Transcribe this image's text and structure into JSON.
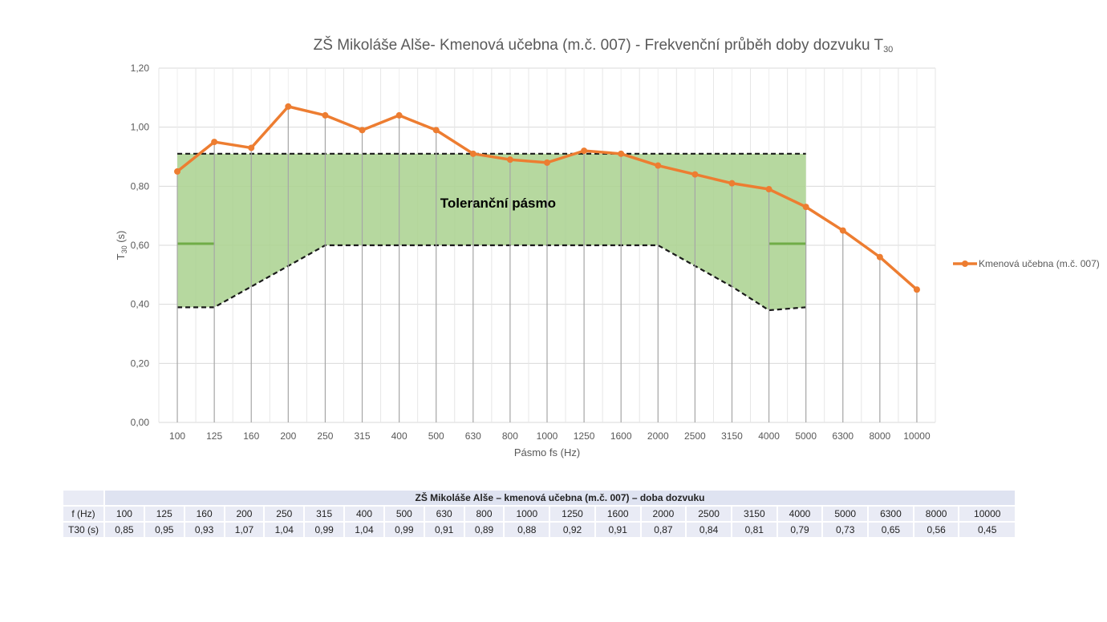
{
  "chart_data": {
    "type": "line",
    "title": "ZŠ Mikoláše Alše- Kmenová učebna (m.č. 007) - Frekvenční průběh doby dozvuku T",
    "title_sub": "30",
    "xlabel": "Pásmo fs (Hz)",
    "ylabel": "T",
    "ylabel_sub": "30",
    "ylabel_suffix": " (s)",
    "categories": [
      "100",
      "125",
      "160",
      "200",
      "250",
      "315",
      "400",
      "500",
      "630",
      "800",
      "1000",
      "1250",
      "1600",
      "2000",
      "2500",
      "3150",
      "4000",
      "5000",
      "6300",
      "8000",
      "10000"
    ],
    "ylim": [
      0,
      1.2
    ],
    "yticks": [
      "0,00",
      "0,20",
      "0,40",
      "0,60",
      "0,80",
      "1,00",
      "1,20"
    ],
    "ytick_values": [
      0,
      0.2,
      0.4,
      0.6,
      0.8,
      1.0,
      1.2
    ],
    "grid": true,
    "legend_position": "right",
    "series": [
      {
        "name": "Kmenová učebna (m.č. 007)",
        "color": "#ed7d31",
        "values": [
          0.85,
          0.95,
          0.93,
          1.07,
          1.04,
          0.99,
          1.04,
          0.99,
          0.91,
          0.89,
          0.88,
          0.92,
          0.91,
          0.87,
          0.84,
          0.81,
          0.79,
          0.73,
          0.65,
          0.56,
          0.45
        ]
      }
    ],
    "tolerance_band": {
      "label": "Toleranční pásmo",
      "color": "#a9d18e",
      "upper": [
        0.91,
        0.91,
        0.91,
        0.91,
        0.91,
        0.91,
        0.91,
        0.91,
        0.91,
        0.91,
        0.91,
        0.91,
        0.91,
        0.91,
        0.91,
        0.91,
        0.91,
        0.91
      ],
      "lower": [
        0.39,
        0.39,
        0.46,
        0.53,
        0.6,
        0.6,
        0.6,
        0.6,
        0.6,
        0.6,
        0.6,
        0.6,
        0.6,
        0.6,
        0.53,
        0.46,
        0.38,
        0.39
      ],
      "range_categories": 18
    }
  },
  "table": {
    "caption": "ZŠ Mikoláše Alše – kmenová učebna (m.č. 007) – doba dozvuku",
    "row_labels": [
      "f (Hz)",
      "T30 (s)"
    ],
    "frequencies": [
      "100",
      "125",
      "160",
      "200",
      "250",
      "315",
      "400",
      "500",
      "630",
      "800",
      "1000",
      "1250",
      "1600",
      "2000",
      "2500",
      "3150",
      "4000",
      "5000",
      "6300",
      "8000",
      "10000"
    ],
    "values": [
      "0,85",
      "0,95",
      "0,93",
      "1,07",
      "1,04",
      "0,99",
      "1,04",
      "0,99",
      "0,91",
      "0,89",
      "0,88",
      "0,92",
      "0,91",
      "0,87",
      "0,84",
      "0,81",
      "0,79",
      "0,73",
      "0,65",
      "0,56",
      "0,45"
    ]
  }
}
